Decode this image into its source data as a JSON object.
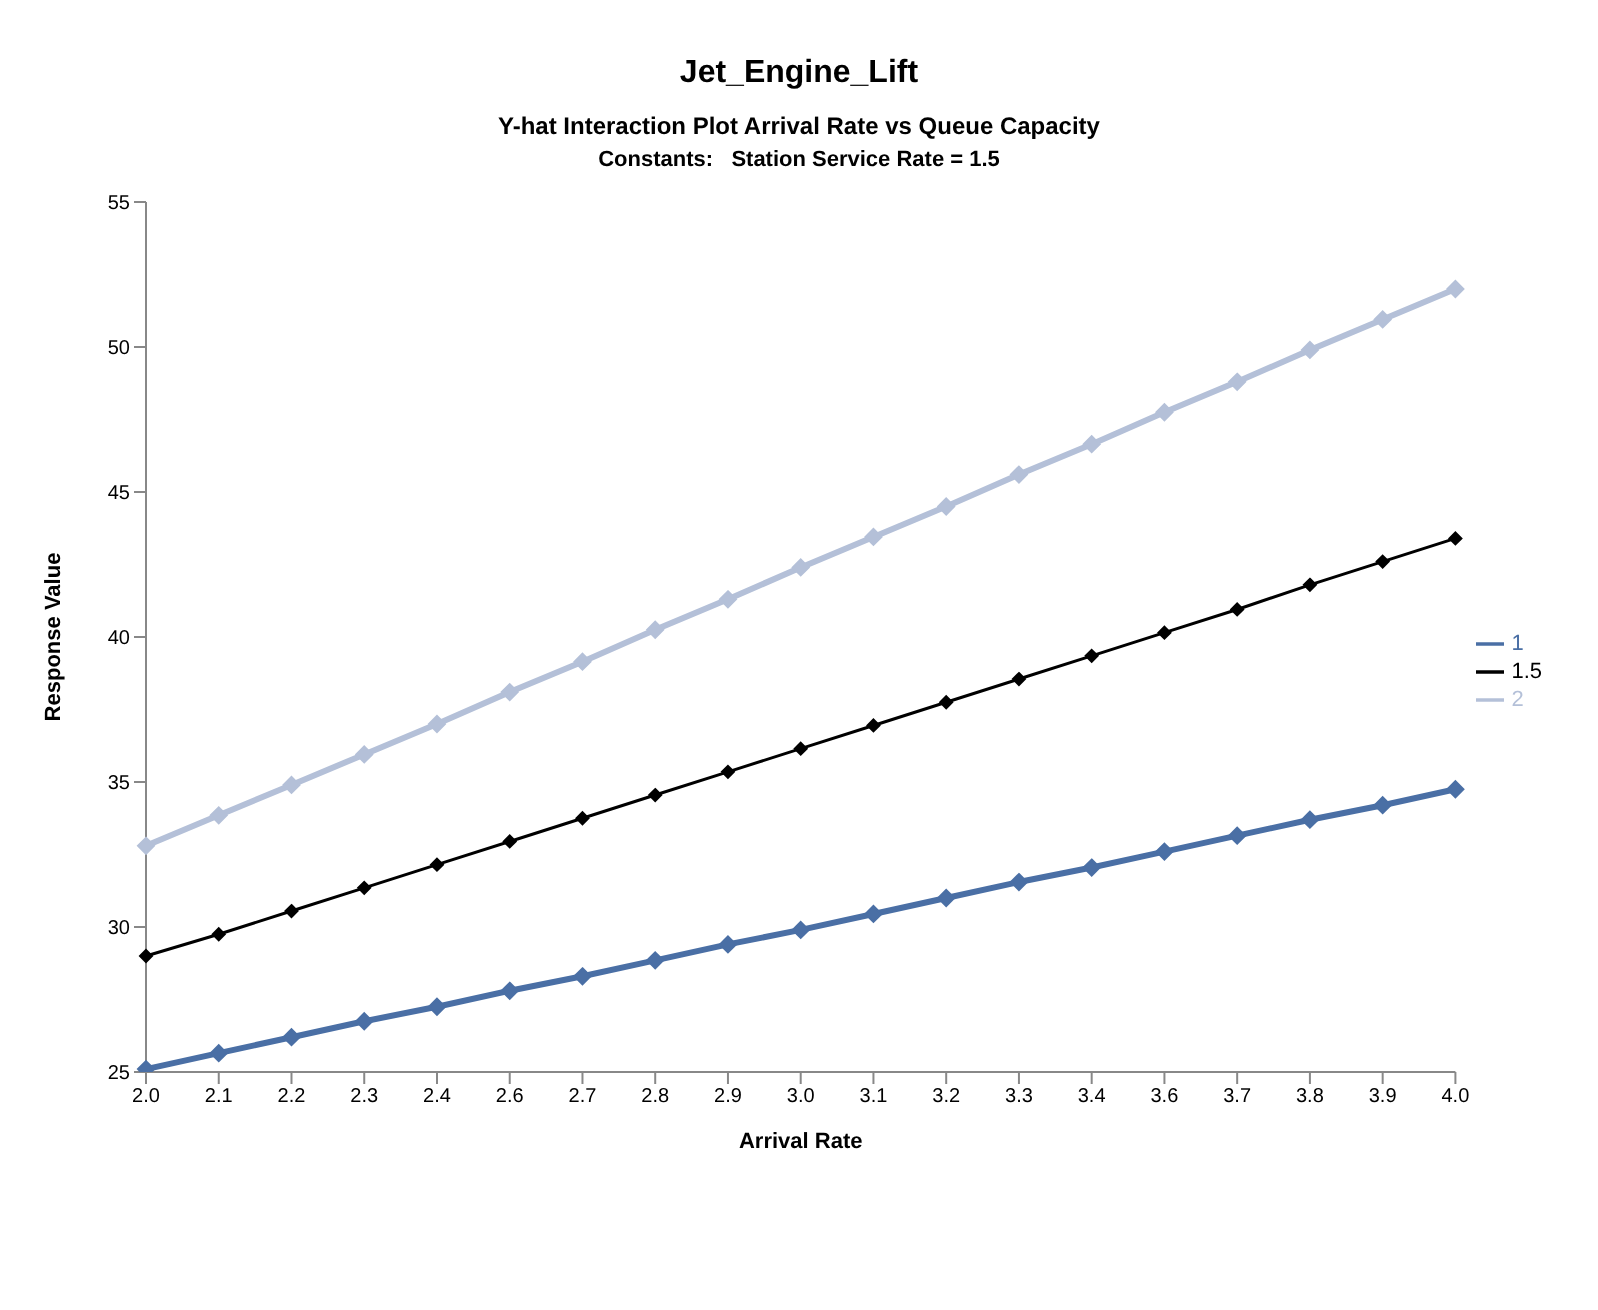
{
  "chart_data": {
    "type": "line",
    "title": "Jet_Engine_Lift",
    "subtitle": "Y-hat Interaction Plot Arrival Rate vs Queue Capacity",
    "annotations": [
      "Constants:   Station Service Rate = 1.5"
    ],
    "xlabel": "Arrival Rate",
    "ylabel": "Response Value",
    "categories": [
      "2.0",
      "2.1",
      "2.2",
      "2.3",
      "2.4",
      "2.6",
      "2.7",
      "2.8",
      "2.9",
      "3.0",
      "3.1",
      "3.2",
      "3.3",
      "3.4",
      "3.6",
      "3.7",
      "3.8",
      "3.9",
      "4.0"
    ],
    "series": [
      {
        "name": "1",
        "color": "#4a6fa5",
        "values": [
          25.1,
          25.65,
          26.2,
          26.75,
          27.25,
          27.8,
          28.3,
          28.85,
          29.4,
          29.9,
          30.45,
          31.0,
          31.55,
          32.05,
          32.6,
          33.15,
          33.7,
          34.2,
          34.75
        ]
      },
      {
        "name": "1.5",
        "color": "#000000",
        "values": [
          29.0,
          29.75,
          30.55,
          31.35,
          32.15,
          32.95,
          33.75,
          34.55,
          35.35,
          36.15,
          36.95,
          37.75,
          38.55,
          39.35,
          40.15,
          40.95,
          41.8,
          42.6,
          43.4
        ]
      },
      {
        "name": "2",
        "color": "#b4c0d8",
        "values": [
          32.8,
          33.85,
          34.9,
          35.95,
          37.0,
          38.1,
          39.15,
          40.25,
          41.3,
          42.4,
          43.45,
          44.5,
          45.6,
          46.65,
          47.75,
          48.8,
          49.9,
          50.95,
          52.0
        ]
      }
    ],
    "ylim": [
      25,
      55
    ],
    "yticks": [
      25,
      30,
      35,
      40,
      45,
      50,
      55
    ],
    "grid": false,
    "legend": "right",
    "marker": "diamond",
    "line_style": "solid"
  }
}
